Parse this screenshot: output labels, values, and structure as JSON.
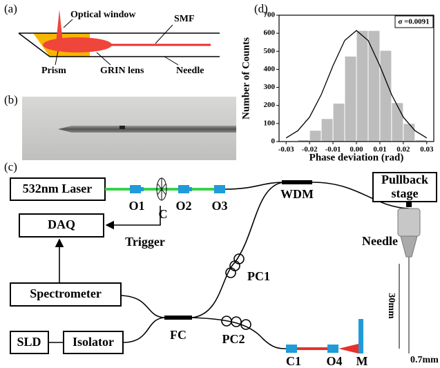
{
  "panels": {
    "a": "(a)",
    "b": "(b)",
    "c": "(c)",
    "d": "(d)"
  },
  "diagram_a": {
    "labels": [
      "Optical window",
      "SMF",
      "Prism",
      "GRIN lens",
      "Needle"
    ]
  },
  "diagram_c": {
    "labels": [
      "532nm Laser",
      "O1",
      "C",
      "O2",
      "O3",
      "Pullback",
      "stage",
      "DAQ",
      "Trigger",
      "WDM",
      "Needle",
      "PC1",
      "Spectrometer",
      "FC",
      "PC2",
      "SLD",
      "Isolator",
      "C1",
      "O4",
      "M",
      "30mm",
      "0.7mm"
    ]
  },
  "chart_data": {
    "type": "histogram",
    "xlabel": "Phase deviation (rad)",
    "ylabel": "Number of Counts",
    "annotation": "σ =0.0091",
    "bins": [
      -0.03,
      -0.025,
      -0.02,
      -0.015,
      -0.01,
      -0.005,
      0,
      0.005,
      0.01,
      0.015,
      0.02,
      0.025,
      0.03
    ],
    "values": [
      3,
      10,
      62,
      127,
      212,
      473,
      615,
      615,
      505,
      215,
      100,
      10
    ],
    "color": "#bdbdbd",
    "curve": {
      "x": [
        -0.03,
        -0.025,
        -0.02,
        -0.015,
        -0.01,
        -0.005,
        0,
        0.005,
        0.01,
        0.015,
        0.02,
        0.025,
        0.03
      ],
      "values": [
        20,
        60,
        135,
        260,
        420,
        560,
        615,
        560,
        420,
        260,
        135,
        60,
        20
      ],
      "color": "#000000"
    },
    "xlim": [
      -0.033,
      0.033
    ],
    "ylim": [
      0,
      700
    ],
    "xticks": [
      -0.03,
      -0.02,
      -0.01,
      {
        "value": 0,
        "label": "0.00"
      },
      0.01,
      0.02,
      0.03
    ],
    "yticks": [
      0,
      100,
      200,
      300,
      400,
      500,
      600,
      700
    ]
  }
}
